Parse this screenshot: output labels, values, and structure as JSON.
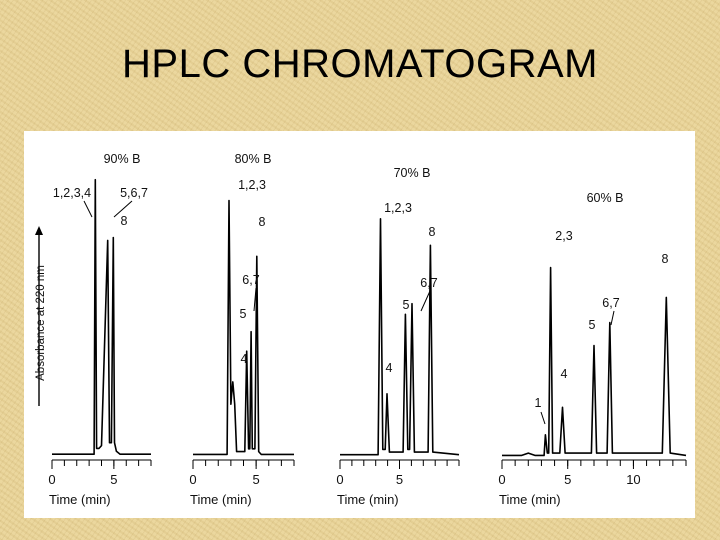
{
  "slide": {
    "title": "HPLC CHROMATOGRAM"
  },
  "chart_data": [
    {
      "type": "line",
      "title": "90% B",
      "ylabel": "Absorbance at 220 nm",
      "xlabel": "Time (min)",
      "xlim": [
        0,
        8
      ],
      "xticks": [
        0,
        5
      ],
      "series": [
        {
          "x": [
            0,
            3.4,
            3.5,
            3.6,
            3.8,
            4.0,
            4.5,
            4.65,
            4.8,
            4.95,
            5.05,
            5.2,
            5.5,
            8
          ],
          "y": [
            0.02,
            0.02,
            0.97,
            0.04,
            0.04,
            0.05,
            0.76,
            0.06,
            0.06,
            0.77,
            0.06,
            0.03,
            0.02,
            0.02
          ]
        }
      ],
      "peak_labels": [
        {
          "text": "1,2,3,4",
          "x": 3.5,
          "y": 0.97
        },
        {
          "text": "5,6,7",
          "x": 4.5,
          "y": 0.76
        },
        {
          "text": "8",
          "x": 4.95,
          "y": 0.77
        }
      ]
    },
    {
      "type": "line",
      "title": "80% B",
      "xlabel": "Time (min)",
      "xlim": [
        0,
        8
      ],
      "xticks": [
        0,
        5
      ],
      "series": [
        {
          "x": [
            0,
            2.7,
            2.85,
            3.0,
            3.05,
            3.15,
            3.3,
            3.45,
            3.6,
            4.1,
            4.25,
            4.4,
            4.5,
            4.6,
            4.7,
            4.9,
            5.05,
            5.2,
            5.4,
            8
          ],
          "y": [
            0.02,
            0.02,
            0.93,
            0.2,
            0.23,
            0.28,
            0.2,
            0.03,
            0.03,
            0.03,
            0.39,
            0.04,
            0.04,
            0.46,
            0.04,
            0.04,
            0.73,
            0.03,
            0.02,
            0.02
          ]
        }
      ],
      "peak_labels": [
        {
          "text": "1,2,3",
          "x": 2.85,
          "y": 0.93
        },
        {
          "text": "4",
          "x": 3.2,
          "y": 0.28
        },
        {
          "text": "5",
          "x": 4.25,
          "y": 0.39
        },
        {
          "text": "6,7",
          "x": 4.6,
          "y": 0.46
        },
        {
          "text": "8",
          "x": 5.05,
          "y": 0.73
        }
      ]
    },
    {
      "type": "line",
      "title": "70% B",
      "xlabel": "Time (min)",
      "xlim": [
        0,
        10
      ],
      "xticks": [
        0,
        5
      ],
      "series": [
        {
          "x": [
            0,
            3.2,
            3.4,
            3.6,
            3.8,
            3.95,
            4.15,
            5.3,
            5.5,
            5.7,
            5.85,
            6.05,
            6.25,
            7.4,
            7.6,
            7.8,
            10
          ],
          "y": [
            0.02,
            0.02,
            0.91,
            0.04,
            0.04,
            0.25,
            0.03,
            0.03,
            0.55,
            0.04,
            0.04,
            0.59,
            0.03,
            0.03,
            0.81,
            0.03,
            0.02
          ]
        }
      ],
      "peak_labels": [
        {
          "text": "1,2,3",
          "x": 3.4,
          "y": 0.91
        },
        {
          "text": "4",
          "x": 3.95,
          "y": 0.25
        },
        {
          "text": "5",
          "x": 5.5,
          "y": 0.55
        },
        {
          "text": "6,7",
          "x": 6.05,
          "y": 0.59
        },
        {
          "text": "8",
          "x": 7.6,
          "y": 0.81
        }
      ]
    },
    {
      "type": "line",
      "title": "60% B",
      "xlabel": "Time (min)",
      "xlim": [
        0,
        14
      ],
      "xticks": [
        0,
        5,
        10
      ],
      "series": [
        {
          "x": [
            0,
            1.5,
            2.0,
            2.5,
            3.2,
            3.3,
            3.45,
            3.55,
            3.7,
            3.85,
            4.4,
            4.6,
            4.8,
            6.8,
            7.0,
            7.2,
            8.0,
            8.2,
            8.4,
            12.2,
            12.5,
            12.8,
            14
          ],
          "y": [
            0.02,
            0.02,
            0.03,
            0.02,
            0.02,
            0.11,
            0.03,
            0.03,
            0.84,
            0.03,
            0.03,
            0.23,
            0.03,
            0.03,
            0.5,
            0.03,
            0.03,
            0.6,
            0.03,
            0.03,
            0.71,
            0.03,
            0.02
          ]
        }
      ],
      "peak_labels": [
        {
          "text": "1",
          "x": 3.3,
          "y": 0.11
        },
        {
          "text": "2,3",
          "x": 3.7,
          "y": 0.84
        },
        {
          "text": "4",
          "x": 4.6,
          "y": 0.23
        },
        {
          "text": "5",
          "x": 7.0,
          "y": 0.5
        },
        {
          "text": "6,7",
          "x": 8.2,
          "y": 0.6
        },
        {
          "text": "8",
          "x": 12.5,
          "y": 0.71
        }
      ]
    }
  ]
}
